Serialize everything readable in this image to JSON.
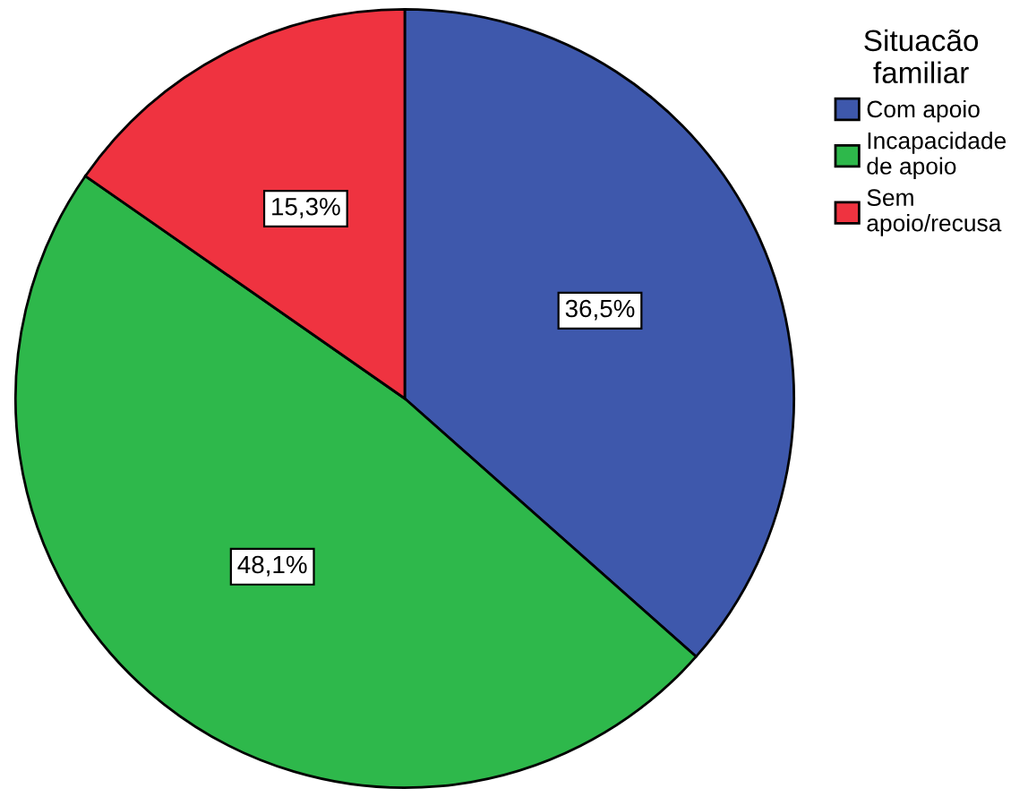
{
  "chart_data": {
    "type": "pie",
    "legend_title": "Situacão\nfamiliar",
    "legend": "top right",
    "categories": [
      "Com apoio",
      "Incapacidade\nde apoio",
      "Sem\napoio/recusa"
    ],
    "values": [
      36.5,
      48.1,
      15.3
    ],
    "colors": [
      "#3e58ac",
      "#2eb84b",
      "#ef3340"
    ],
    "value_labels": [
      "36,5%",
      "48,1%",
      "15,3%"
    ]
  }
}
